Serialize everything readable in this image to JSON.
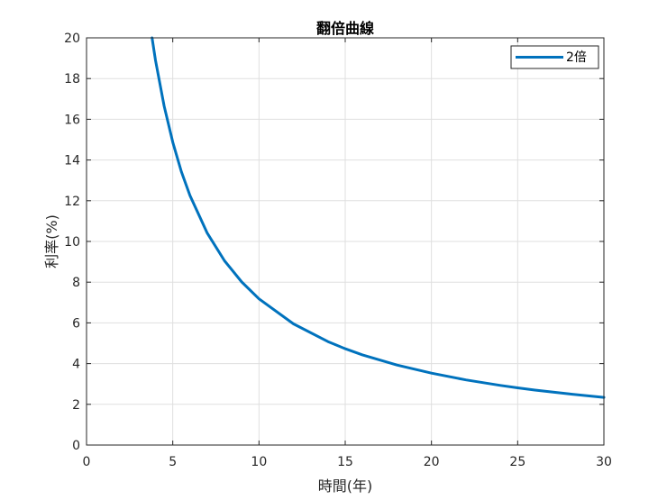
{
  "chart_data": {
    "type": "line",
    "title": "翻倍曲線",
    "xlabel": "時間(年)",
    "ylabel": "利率(%)",
    "xlim": [
      0,
      30
    ],
    "ylim": [
      0,
      20
    ],
    "xticks": [
      0,
      5,
      10,
      15,
      20,
      25,
      30
    ],
    "yticks": [
      0,
      2,
      4,
      6,
      8,
      10,
      12,
      14,
      16,
      18,
      20
    ],
    "grid": true,
    "legend_position": "top-right",
    "series": [
      {
        "name": "2倍",
        "color": "#0072BD",
        "x": [
          3.8,
          4,
          4.5,
          5,
          5.5,
          6,
          7,
          8,
          9,
          10,
          12,
          14,
          15,
          16,
          18,
          20,
          22,
          24,
          25,
          26,
          28,
          30
        ],
        "y": [
          20.0,
          18.9,
          16.65,
          14.87,
          13.43,
          12.25,
          10.41,
          9.05,
          8.01,
          7.18,
          5.95,
          5.08,
          4.73,
          4.43,
          3.93,
          3.53,
          3.2,
          2.93,
          2.81,
          2.7,
          2.51,
          2.34
        ]
      }
    ]
  }
}
